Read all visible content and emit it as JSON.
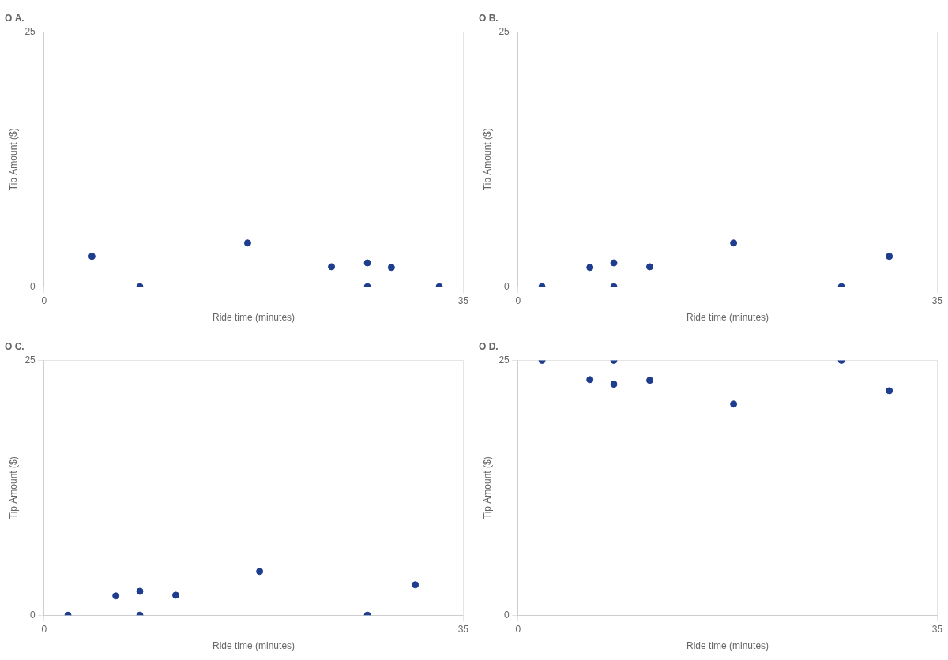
{
  "chart_data": [
    {
      "type": "scatter",
      "title": "O A.",
      "x": [
        29,
        17,
        4,
        8,
        24,
        27,
        27,
        33
      ],
      "values": [
        1.89,
        4.29,
        2.98,
        0.0,
        1.96,
        2.34,
        0.0,
        0.0
      ],
      "color": "#1e3d8f",
      "xlabel": "Ride time (minutes)",
      "ylabel": "Tip Amount ($)",
      "xlim": [
        0,
        35
      ],
      "xticks": [
        0,
        35
      ],
      "ylim": [
        0,
        25
      ],
      "yticks": [
        0,
        25
      ],
      "grid": true
    },
    {
      "type": "scatter",
      "title": "O B.",
      "x": [
        6.0,
        18.0,
        31.0,
        27.0,
        11.0,
        8.0,
        8.0,
        2.0
      ],
      "values": [
        1.89,
        4.29,
        2.98,
        0.0,
        1.96,
        2.34,
        0.0,
        0.0
      ],
      "color": "#1e3d8f",
      "xlabel": "Ride time (minutes)",
      "ylabel": "Tip Amount ($)",
      "xlim": [
        0,
        35
      ],
      "xticks": [
        0,
        35
      ],
      "ylim": [
        0,
        25
      ],
      "yticks": [
        0,
        25
      ],
      "grid": true
    },
    {
      "type": "scatter",
      "title": "O C.",
      "x": [
        6.0,
        18.0,
        31.0,
        27.0,
        11.0,
        8.0,
        8.0,
        2.0
      ],
      "values": [
        1.89,
        4.29,
        2.98,
        0.0,
        1.96,
        2.34,
        0.0,
        0.0
      ],
      "color": "#1e3d8f",
      "xlabel": "Ride time (minutes)",
      "ylabel": "Tip Amount ($)",
      "xlim": [
        0,
        35
      ],
      "xticks": [
        0,
        35
      ],
      "ylim": [
        0,
        25
      ],
      "yticks": [
        0,
        25
      ],
      "grid": true
    },
    {
      "type": "scatter",
      "title": "O D.",
      "x": [
        6.0,
        18.0,
        31.0,
        27.0,
        11.0,
        8.0,
        8.0,
        2.0
      ],
      "values": [
        23.11,
        20.71,
        22.02,
        25,
        23.04,
        22.66,
        25,
        25
      ],
      "color": "#1e3d8f",
      "xlabel": "Ride time (minutes)",
      "ylabel": "Tip Amount ($)",
      "xlim": [
        0,
        35
      ],
      "xticks": [
        0,
        35
      ],
      "ylim": [
        0,
        25
      ],
      "yticks": [
        0,
        25
      ],
      "grid": true
    }
  ]
}
